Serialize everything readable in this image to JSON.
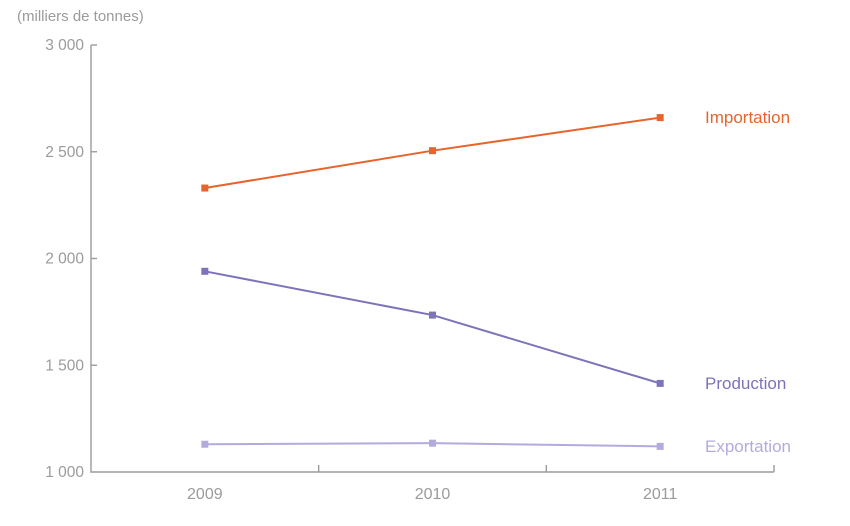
{
  "chart_data": {
    "type": "line",
    "title": "(milliers de tonnes)",
    "x": [
      "2009",
      "2010",
      "2011"
    ],
    "series": [
      {
        "name": "Importation",
        "values": [
          2330,
          2505,
          2660
        ],
        "color": "#E5652C"
      },
      {
        "name": "Production",
        "values": [
          1940,
          1735,
          1415
        ],
        "color": "#7C74B8"
      },
      {
        "name": "Exportation",
        "values": [
          1130,
          1135,
          1120
        ],
        "color": "#B2ACDE"
      }
    ],
    "ylim": [
      1000,
      3000
    ],
    "yticks": [
      {
        "value": 3000,
        "label": "3 000"
      },
      {
        "value": 2500,
        "label": "2 500"
      },
      {
        "value": 2000,
        "label": "2 000"
      },
      {
        "value": 1500,
        "label": "1 500"
      },
      {
        "value": 1000,
        "label": "1 000"
      }
    ],
    "grid": false,
    "legend_position": "right-of-last-point"
  },
  "colors": {
    "axis": "#9B9B9B",
    "tick_text": "#9B9B9B",
    "title_text": "#9B9B9B"
  }
}
